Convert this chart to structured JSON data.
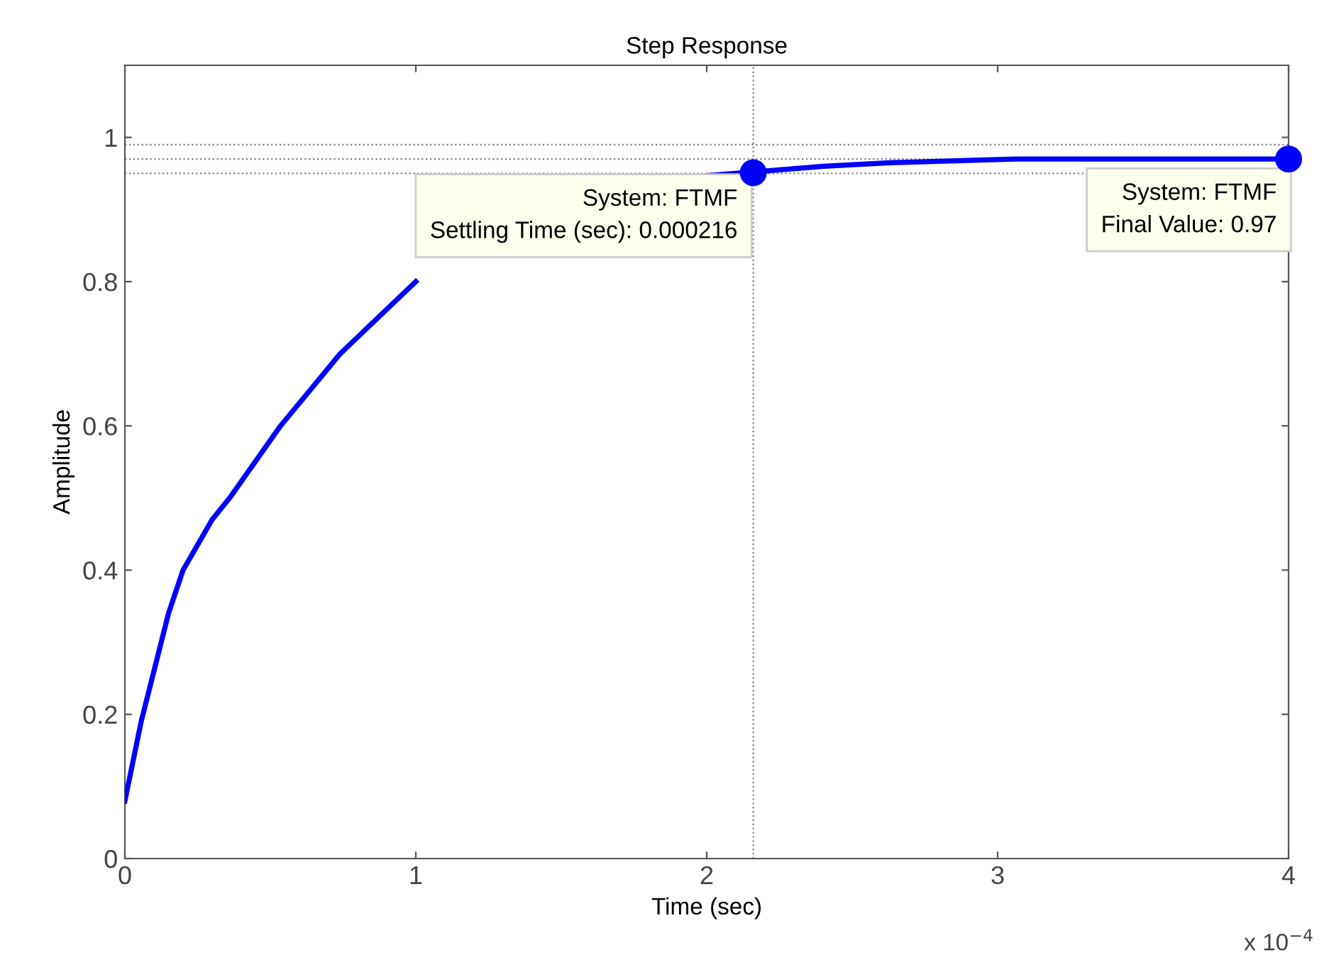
{
  "chart_data": {
    "type": "line",
    "title": "Step Response",
    "xlabel": "Time (sec)",
    "ylabel": "Amplitude",
    "xlim": [
      0,
      4
    ],
    "ylim": [
      0,
      1.1
    ],
    "xticks": [
      0,
      1,
      2,
      3,
      4
    ],
    "yticks": [
      0,
      0.2,
      0.4,
      0.6,
      0.8,
      1
    ],
    "grid": false,
    "legend": false,
    "series": [
      {
        "color": "#0000ff",
        "marker": "none",
        "line_style": "solid",
        "x": [
          0,
          0.056,
          0.15,
          0.2,
          0.3,
          0.36,
          0.535,
          0.74,
          1.0,
          1.2,
          1.56,
          1.75,
          2.0,
          2.16,
          2.4,
          2.64,
          3.06,
          3.5,
          4.0
        ],
        "values": [
          0.08,
          0.19,
          0.34,
          0.4,
          0.47,
          0.5,
          0.6,
          0.7,
          0.8,
          null,
          null,
          null,
          0.947,
          0.952,
          0.96,
          0.965,
          0.97,
          0.97,
          0.97
        ]
      },
      {
        "type": "scatter",
        "color": "#0000ff",
        "marker": "circle",
        "x": [
          2.16,
          4.0
        ],
        "values": [
          0.951,
          0.97
        ]
      }
    ],
    "ref_lines": [
      {
        "axis": "y",
        "value": 0.99,
        "color": "#808080",
        "line_style": "dotted"
      },
      {
        "axis": "y",
        "value": 0.97,
        "color": "#808080",
        "line_style": "dotted"
      },
      {
        "axis": "y",
        "value": 0.95,
        "color": "#808080",
        "line_style": "dotted"
      },
      {
        "axis": "x",
        "value": 2.16,
        "color": "#808080",
        "line_style": "dotted"
      }
    ],
    "annotations": [
      {
        "text": "System: FTMF\nSettling Time (sec): 0.000216",
        "x": 2.16,
        "y": 0.951
      },
      {
        "text": "System: FTMF\nFinal Value: 0.97",
        "x": 4.0,
        "y": 0.97
      },
      "x 10$^{−4}$"
    ]
  }
}
